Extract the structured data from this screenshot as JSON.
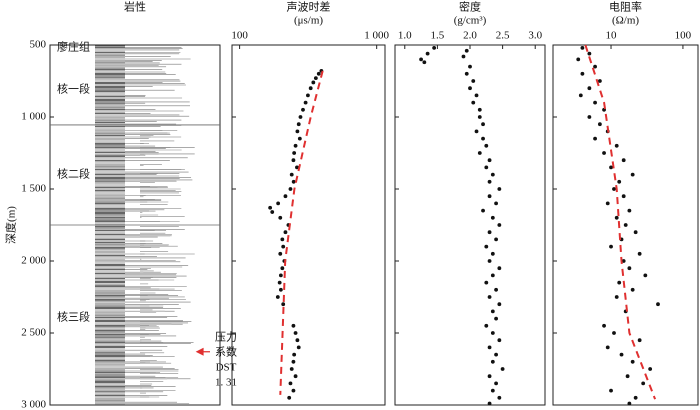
{
  "chart_data": [
    {
      "type": "lithology",
      "title": "岩性",
      "ylabel": "深度(m)",
      "ylim": [
        500,
        3000
      ],
      "yticks": [
        500,
        {
          "value": 1000,
          "label": "1 000"
        },
        {
          "value": 1500,
          "label": "1 500"
        },
        {
          "value": 2000,
          "label": "2 000"
        },
        {
          "value": 2500,
          "label": "2 500"
        },
        {
          "value": 3000,
          "label": "3 000"
        }
      ],
      "zones": [
        "廖庄组",
        "核一段",
        "核二段",
        "核三段"
      ],
      "boundaries": [
        1055,
        1750
      ],
      "annotation": {
        "lines": [
          "压力",
          "系数",
          "DST",
          "1. 31"
        ],
        "depth": 2630,
        "color": "#e03030"
      }
    },
    {
      "type": "scatter",
      "title": "声波时差",
      "unit": "(μs/m)",
      "log": true,
      "xlim": [
        88,
        1150
      ],
      "xticks": [
        100,
        {
          "value": 1000,
          "label": "1 000"
        }
      ],
      "color": "#111",
      "x": [
        395,
        378,
        360,
        345,
        330,
        315,
        303,
        290,
        278,
        270,
        264,
        275,
        256,
        250,
        247,
        262,
        240,
        248,
        235,
        216,
        191,
        167,
        173,
        198,
        227,
        216,
        205,
        208,
        198,
        212,
        205,
        200,
        196,
        200,
        190,
        208,
        247,
        256,
        264,
        270,
        250,
        247,
        240,
        256,
        235,
        247,
        230
      ],
      "y": [
        680,
        700,
        730,
        760,
        800,
        850,
        900,
        950,
        1000,
        1050,
        1100,
        1150,
        1200,
        1250,
        1300,
        1350,
        1400,
        1450,
        1500,
        1550,
        1600,
        1630,
        1660,
        1700,
        1750,
        1800,
        1850,
        1900,
        1950,
        2000,
        2050,
        2100,
        2150,
        2200,
        2250,
        2300,
        2450,
        2500,
        2550,
        2600,
        2650,
        2700,
        2750,
        2800,
        2850,
        2900,
        2950
      ],
      "trend": {
        "color": "#e03030",
        "x": [
          404,
          330,
          251,
          215,
          198
        ],
        "y": [
          680,
          1000,
          1500,
          2000,
          2930
        ]
      }
    },
    {
      "type": "scatter",
      "title": "密度",
      "unit": "(g/cm³)",
      "log": false,
      "xlim": [
        0.85,
        3.15
      ],
      "xticks": [
        {
          "value": 1,
          "label": "1.0"
        },
        1.5,
        {
          "value": 2,
          "label": "2.0"
        },
        2.5,
        {
          "value": 3,
          "label": "3.0"
        }
      ],
      "color": "#111",
      "x": [
        1.95,
        1.45,
        1.9,
        1.35,
        1.25,
        1.3,
        2.0,
        1.95,
        2.05,
        2.0,
        2.1,
        2.05,
        2.15,
        2.15,
        2.2,
        2.1,
        2.2,
        2.25,
        2.15,
        2.3,
        2.25,
        2.35,
        2.3,
        2.45,
        2.3,
        2.4,
        2.2,
        2.35,
        2.45,
        2.3,
        2.4,
        2.25,
        2.35,
        2.3,
        2.45,
        2.35,
        2.25,
        2.4,
        2.3,
        2.45,
        2.35,
        2.4,
        2.25,
        2.35,
        2.45,
        2.3,
        2.4,
        2.35,
        2.5,
        2.3,
        2.4,
        2.35,
        2.45,
        2.3
      ],
      "y": [
        540,
        520,
        580,
        560,
        600,
        620,
        650,
        700,
        750,
        800,
        850,
        900,
        950,
        1000,
        1050,
        1100,
        1150,
        1200,
        1250,
        1300,
        1350,
        1400,
        1450,
        1500,
        1550,
        1600,
        1650,
        1700,
        1750,
        1800,
        1850,
        1900,
        1950,
        2000,
        2050,
        2100,
        2150,
        2200,
        2250,
        2300,
        2350,
        2400,
        2450,
        2500,
        2550,
        2600,
        2650,
        2700,
        2750,
        2800,
        2850,
        2900,
        2950,
        2990
      ]
    },
    {
      "type": "scatter",
      "title": "电阻率",
      "unit": "(Ω/m)",
      "log": true,
      "xlim": [
        1.56,
        162
      ],
      "xticks": [
        10,
        100
      ],
      "color": "#111",
      "x": [
        4,
        5,
        3.5,
        6,
        4,
        7,
        5,
        3.8,
        6,
        8,
        5,
        7,
        9,
        6,
        12,
        8,
        15,
        10,
        20,
        13,
        11,
        15,
        9,
        18,
        12,
        16,
        22,
        14,
        10,
        25,
        15,
        18,
        30,
        13,
        20,
        12,
        45,
        16,
        8,
        11,
        25,
        9,
        14,
        20,
        35,
        17,
        28,
        10,
        22,
        18
      ],
      "y": [
        520,
        560,
        600,
        650,
        700,
        750,
        800,
        850,
        900,
        950,
        1000,
        1050,
        1100,
        1150,
        1200,
        1250,
        1300,
        1350,
        1400,
        1450,
        1500,
        1550,
        1600,
        1650,
        1700,
        1750,
        1800,
        1850,
        1900,
        1950,
        2000,
        2050,
        2100,
        2150,
        2200,
        2250,
        2300,
        2350,
        2450,
        2500,
        2550,
        2600,
        2650,
        2700,
        2750,
        2800,
        2850,
        2900,
        2950,
        2990
      ],
      "trend": {
        "color": "#e03030",
        "x": [
          4.4,
          8,
          12,
          14,
          18,
          41
        ],
        "y": [
          500,
          900,
          1500,
          2000,
          2500,
          2960
        ]
      }
    }
  ]
}
